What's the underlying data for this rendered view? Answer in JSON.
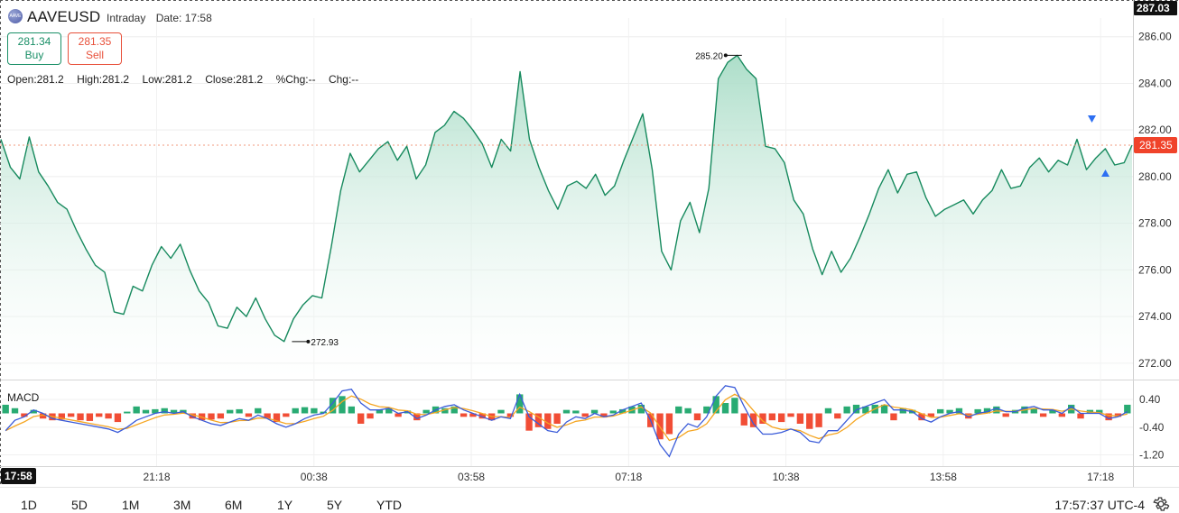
{
  "header": {
    "symbol": "AAVEUSD",
    "interval": "Intraday",
    "date_label": "Date: 17:58",
    "buy_price": "281.34",
    "buy_label": "Buy",
    "sell_price": "281.35",
    "sell_label": "Sell",
    "ohlc": {
      "open": "Open:281.2",
      "high": "High:281.2",
      "low": "Low:281.2",
      "close": "Close:281.2",
      "pct_chg": "%Chg:--",
      "chg": "Chg:--"
    }
  },
  "indicator_label": "MACD",
  "time_badge": "17:58",
  "periods": [
    "1D",
    "5D",
    "1M",
    "3M",
    "6M",
    "1Y",
    "5Y",
    "YTD"
  ],
  "clock": "17:57:37 UTC-4",
  "colors": {
    "line": "#178a5e",
    "area_top": "#a8dcc6",
    "hist_up": "#1ea76b",
    "hist_down": "#f0432a",
    "macd_line": "#3a5bd9",
    "signal_line": "#f5a623",
    "price_badge": "#f0432a",
    "last_line": "#f29a7e",
    "marker": "#2d6ff2"
  },
  "icons": {
    "settings": "gear-icon",
    "sell_marker": "triangle-down-icon",
    "buy_marker": "triangle-up-icon"
  },
  "chart_data": {
    "type": "area",
    "series_name": "AAVEUSD",
    "x_ticks": [
      "21:18",
      "00:38",
      "03:58",
      "07:18",
      "10:38",
      "13:58",
      "17:18"
    ],
    "y_ticks": [
      272,
      274,
      276,
      278,
      280,
      282,
      284,
      286
    ],
    "ylim": [
      271.3,
      286.8
    ],
    "current_price": 281.35,
    "top_price_label": "287.03",
    "annotations": [
      {
        "label": "285.20",
        "value": 285.2,
        "time": "09:42"
      },
      {
        "label": "272.93",
        "value": 272.93,
        "time": "00:10"
      }
    ],
    "series": [
      {
        "name": "price",
        "x": [
          "18:00",
          "18:12",
          "18:24",
          "18:36",
          "18:48",
          "19:00",
          "19:12",
          "19:24",
          "19:36",
          "19:48",
          "20:00",
          "20:12",
          "20:24",
          "20:36",
          "20:48",
          "21:00",
          "21:12",
          "21:24",
          "21:36",
          "21:48",
          "22:00",
          "22:12",
          "22:24",
          "22:36",
          "22:48",
          "23:00",
          "23:12",
          "23:24",
          "23:36",
          "23:48",
          "00:00",
          "00:12",
          "00:24",
          "00:36",
          "00:48",
          "01:00",
          "01:12",
          "01:24",
          "01:36",
          "01:48",
          "02:00",
          "02:12",
          "02:24",
          "02:36",
          "02:48",
          "03:00",
          "03:12",
          "03:24",
          "03:36",
          "03:48",
          "04:00",
          "04:12",
          "04:24",
          "04:36",
          "04:48",
          "05:00",
          "05:12",
          "05:24",
          "05:36",
          "05:48",
          "06:00",
          "06:12",
          "06:24",
          "06:36",
          "06:48",
          "07:00",
          "07:12",
          "07:24",
          "07:36",
          "07:48",
          "08:00",
          "08:12",
          "08:24",
          "08:36",
          "08:48",
          "09:00",
          "09:12",
          "09:24",
          "09:36",
          "09:48",
          "10:00",
          "10:12",
          "10:24",
          "10:36",
          "10:48",
          "11:00",
          "11:12",
          "11:24",
          "11:36",
          "11:48",
          "12:00",
          "12:12",
          "12:24",
          "12:36",
          "12:48",
          "13:00",
          "13:12",
          "13:24",
          "13:36",
          "13:48",
          "14:00",
          "14:12",
          "14:24",
          "14:36",
          "14:48",
          "15:00",
          "15:12",
          "15:24",
          "15:36",
          "15:48",
          "16:00",
          "16:12",
          "16:24",
          "16:36",
          "16:48",
          "17:00",
          "17:12",
          "17:24",
          "17:36",
          "17:48",
          "17:58"
        ],
        "values": [
          281.6,
          280.4,
          279.9,
          281.7,
          280.2,
          279.6,
          278.9,
          278.6,
          277.7,
          276.9,
          276.2,
          275.9,
          274.2,
          274.1,
          275.3,
          275.1,
          276.2,
          277.0,
          276.5,
          277.1,
          276.0,
          275.1,
          274.6,
          273.6,
          273.5,
          274.4,
          274.0,
          274.8,
          273.9,
          273.2,
          272.93,
          273.9,
          274.5,
          274.9,
          274.8,
          277.0,
          279.4,
          281.0,
          280.2,
          280.7,
          281.2,
          281.5,
          280.7,
          281.3,
          279.9,
          280.5,
          281.9,
          282.2,
          282.8,
          282.5,
          282.0,
          281.4,
          280.4,
          281.6,
          281.1,
          284.5,
          281.6,
          280.4,
          279.4,
          278.6,
          279.6,
          279.8,
          279.5,
          280.1,
          279.2,
          279.6,
          280.7,
          281.7,
          282.7,
          280.3,
          276.8,
          276.0,
          278.1,
          278.9,
          277.6,
          279.5,
          284.2,
          284.9,
          285.2,
          284.6,
          284.2,
          281.3,
          281.2,
          280.6,
          279.0,
          278.4,
          276.9,
          275.8,
          276.8,
          275.9,
          276.5,
          277.4,
          278.4,
          279.5,
          280.3,
          279.3,
          280.1,
          280.2,
          279.1,
          278.3,
          278.6,
          278.8,
          279.0,
          278.4,
          279.0,
          279.4,
          280.3,
          279.5,
          279.6,
          280.4,
          280.8,
          280.2,
          280.7,
          280.5,
          281.6,
          280.3,
          280.8,
          281.2,
          280.5,
          280.6,
          281.35
        ]
      }
    ],
    "macd": {
      "name": "MACD",
      "y_ticks": [
        0.4,
        -0.4,
        -1.2
      ],
      "ylim": [
        -1.5,
        0.9
      ],
      "histogram": [
        0.25,
        0.15,
        -0.1,
        0.1,
        -0.15,
        -0.2,
        -0.18,
        -0.1,
        -0.2,
        -0.22,
        -0.1,
        -0.15,
        -0.25,
        0.05,
        0.2,
        0.1,
        0.12,
        0.15,
        0.1,
        0.1,
        -0.15,
        -0.2,
        -0.18,
        -0.15,
        0.1,
        0.12,
        -0.1,
        0.15,
        -0.15,
        -0.25,
        -0.1,
        0.15,
        0.18,
        0.15,
        0.05,
        0.45,
        0.5,
        0.2,
        -0.3,
        -0.15,
        0.1,
        0.15,
        -0.1,
        0.08,
        -0.2,
        0.1,
        0.2,
        0.15,
        0.2,
        -0.1,
        -0.1,
        -0.15,
        -0.2,
        0.1,
        -0.1,
        0.55,
        -0.5,
        -0.4,
        -0.45,
        -0.3,
        0.1,
        0.08,
        -0.1,
        0.1,
        -0.12,
        0.08,
        0.12,
        0.2,
        0.25,
        -0.4,
        -0.75,
        -0.6,
        0.2,
        0.15,
        -0.2,
        0.2,
        0.5,
        0.3,
        0.45,
        -0.35,
        -0.4,
        -0.3,
        -0.2,
        -0.25,
        -0.1,
        -0.3,
        -0.45,
        -0.4,
        0.15,
        -0.15,
        0.2,
        0.25,
        0.2,
        0.25,
        0.25,
        -0.2,
        0.15,
        0.1,
        -0.2,
        -0.1,
        0.12,
        0.1,
        0.15,
        -0.15,
        0.12,
        0.15,
        0.2,
        -0.1,
        0.1,
        0.2,
        0.15,
        -0.1,
        0.1,
        -0.1,
        0.25,
        -0.15,
        0.1,
        0.1,
        -0.2,
        -0.1,
        0.25
      ],
      "macd_line": [
        -0.5,
        -0.2,
        -0.1,
        0.1,
        0.0,
        -0.15,
        -0.2,
        -0.25,
        -0.3,
        -0.35,
        -0.4,
        -0.45,
        -0.55,
        -0.4,
        -0.2,
        -0.1,
        0.0,
        0.05,
        0.0,
        0.05,
        -0.1,
        -0.2,
        -0.3,
        -0.35,
        -0.25,
        -0.15,
        -0.2,
        -0.05,
        -0.15,
        -0.3,
        -0.4,
        -0.3,
        -0.15,
        -0.05,
        0.0,
        0.3,
        0.65,
        0.7,
        0.3,
        0.1,
        0.1,
        0.15,
        0.0,
        0.05,
        -0.15,
        -0.05,
        0.1,
        0.2,
        0.25,
        0.1,
        0.0,
        -0.1,
        -0.2,
        -0.1,
        -0.15,
        0.55,
        -0.1,
        -0.3,
        -0.5,
        -0.55,
        -0.25,
        -0.1,
        -0.15,
        0.0,
        -0.1,
        -0.05,
        0.1,
        0.2,
        0.3,
        -0.2,
        -0.9,
        -1.25,
        -0.6,
        -0.3,
        -0.4,
        -0.1,
        0.5,
        0.8,
        0.75,
        0.2,
        -0.3,
        -0.6,
        -0.6,
        -0.55,
        -0.45,
        -0.55,
        -0.8,
        -0.85,
        -0.5,
        -0.5,
        -0.2,
        0.1,
        0.2,
        0.3,
        0.4,
        0.1,
        0.1,
        0.05,
        -0.15,
        -0.25,
        -0.1,
        0.0,
        0.05,
        -0.1,
        0.0,
        0.05,
        0.15,
        0.05,
        0.05,
        0.15,
        0.2,
        0.1,
        0.1,
        0.0,
        0.2,
        0.0,
        0.0,
        0.0,
        -0.15,
        -0.1,
        0.05
      ]
    }
  }
}
